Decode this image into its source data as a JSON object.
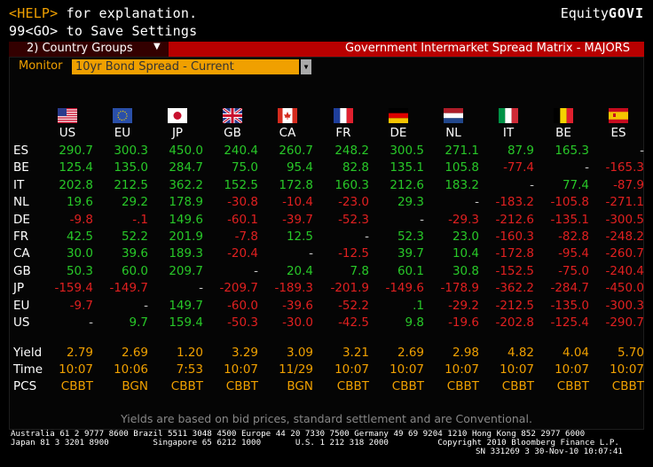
{
  "header": {
    "help_prefix": "<HELP>",
    "help_text": " for explanation.",
    "save_text": "99<GO> to Save Settings",
    "equity_label": "Equity",
    "equity_code": "GOVI"
  },
  "band": {
    "group_label": "2) Country Groups",
    "title": "Government Intermarket Spread Matrix - MAJORS"
  },
  "monitor": {
    "label": "Monitor",
    "selected": "10yr Bond Spread - Current"
  },
  "columns": [
    "US",
    "EU",
    "JP",
    "GB",
    "CA",
    "FR",
    "DE",
    "NL",
    "IT",
    "BE",
    "ES"
  ],
  "rows": [
    {
      "label": "ES",
      "cells": [
        "290.7",
        "300.3",
        "450.0",
        "240.4",
        "260.7",
        "248.2",
        "300.5",
        "271.1",
        "87.9",
        "165.3",
        "-"
      ]
    },
    {
      "label": "BE",
      "cells": [
        "125.4",
        "135.0",
        "284.7",
        "75.0",
        "95.4",
        "82.8",
        "135.1",
        "105.8",
        "-77.4",
        "-",
        "-165.3"
      ]
    },
    {
      "label": "IT",
      "cells": [
        "202.8",
        "212.5",
        "362.2",
        "152.5",
        "172.8",
        "160.3",
        "212.6",
        "183.2",
        "-",
        "77.4",
        "-87.9"
      ]
    },
    {
      "label": "NL",
      "cells": [
        "19.6",
        "29.2",
        "178.9",
        "-30.8",
        "-10.4",
        "-23.0",
        "29.3",
        "-",
        "-183.2",
        "-105.8",
        "-271.1"
      ]
    },
    {
      "label": "DE",
      "cells": [
        "-9.8",
        "-.1",
        "149.6",
        "-60.1",
        "-39.7",
        "-52.3",
        "-",
        "-29.3",
        "-212.6",
        "-135.1",
        "-300.5"
      ]
    },
    {
      "label": "FR",
      "cells": [
        "42.5",
        "52.2",
        "201.9",
        "-7.8",
        "12.5",
        "-",
        "52.3",
        "23.0",
        "-160.3",
        "-82.8",
        "-248.2"
      ]
    },
    {
      "label": "CA",
      "cells": [
        "30.0",
        "39.6",
        "189.3",
        "-20.4",
        "-",
        "-12.5",
        "39.7",
        "10.4",
        "-172.8",
        "-95.4",
        "-260.7"
      ]
    },
    {
      "label": "GB",
      "cells": [
        "50.3",
        "60.0",
        "209.7",
        "-",
        "20.4",
        "7.8",
        "60.1",
        "30.8",
        "-152.5",
        "-75.0",
        "-240.4"
      ]
    },
    {
      "label": "JP",
      "cells": [
        "-159.4",
        "-149.7",
        "-",
        "-209.7",
        "-189.3",
        "-201.9",
        "-149.6",
        "-178.9",
        "-362.2",
        "-284.7",
        "-450.0"
      ]
    },
    {
      "label": "EU",
      "cells": [
        "-9.7",
        "-",
        "149.7",
        "-60.0",
        "-39.6",
        "-52.2",
        ".1",
        "-29.2",
        "-212.5",
        "-135.0",
        "-300.3"
      ]
    },
    {
      "label": "US",
      "cells": [
        "-",
        "9.7",
        "159.4",
        "-50.3",
        "-30.0",
        "-42.5",
        "9.8",
        "-19.6",
        "-202.8",
        "-125.4",
        "-290.7"
      ]
    }
  ],
  "yield_row": {
    "label": "Yield",
    "cells": [
      "2.79",
      "2.69",
      "1.20",
      "3.29",
      "3.09",
      "3.21",
      "2.69",
      "2.98",
      "4.82",
      "4.04",
      "5.70"
    ]
  },
  "time_row": {
    "label": "Time",
    "cells": [
      "10:07",
      "10:06",
      "7:53",
      "10:07",
      "11/29",
      "10:07",
      "10:07",
      "10:07",
      "10:07",
      "10:07",
      "10:07"
    ]
  },
  "pcs_row": {
    "label": "PCS",
    "cells": [
      "CBBT",
      "BGN",
      "CBBT",
      "CBBT",
      "BGN",
      "CBBT",
      "CBBT",
      "CBBT",
      "CBBT",
      "CBBT",
      "CBBT"
    ]
  },
  "note": "Yields are based on bid prices, standard settlement and are Conventional.",
  "contacts_line1": "Australia 61 2 9777 8600 Brazil 5511 3048 4500 Europe 44 20 7330 7500 Germany 49 69 9204 1210 Hong Kong 852 2977 6000",
  "contacts_line2": "Japan 81 3 3201 8900         Singapore 65 6212 1000       U.S. 1 212 318 2000          Copyright 2010 Bloomberg Finance L.P.",
  "contacts_line3": "SN 331269 3 30-Nov-10 10:07:41",
  "colors": {
    "positive": "#28c828",
    "negative": "#e02020",
    "amber": "#f0a000",
    "band": "#b80000"
  }
}
